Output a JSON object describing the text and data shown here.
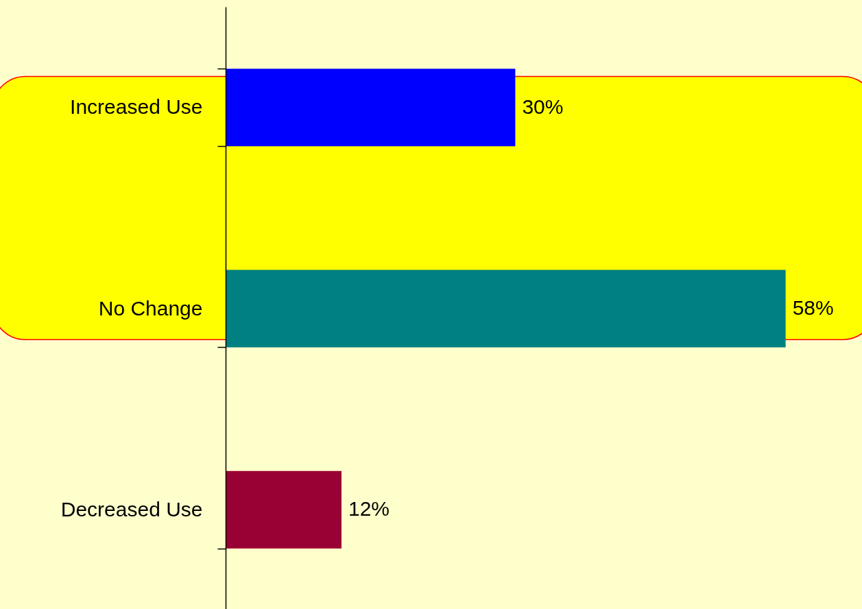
{
  "chart_data": {
    "type": "bar",
    "orientation": "horizontal",
    "tick_labels": "y",
    "categories": [
      "Increased Use",
      "No Change",
      "Decreased Use"
    ],
    "values": [
      30,
      58,
      12
    ],
    "colors": [
      "#0000ff",
      "#008080",
      "#990033"
    ],
    "value_labels": [
      "30%",
      "58%",
      "12%"
    ],
    "bands": [
      {
        "axis": "y",
        "from": "Increased Use",
        "to": "No Change",
        "color": "#ffff00"
      }
    ]
  }
}
